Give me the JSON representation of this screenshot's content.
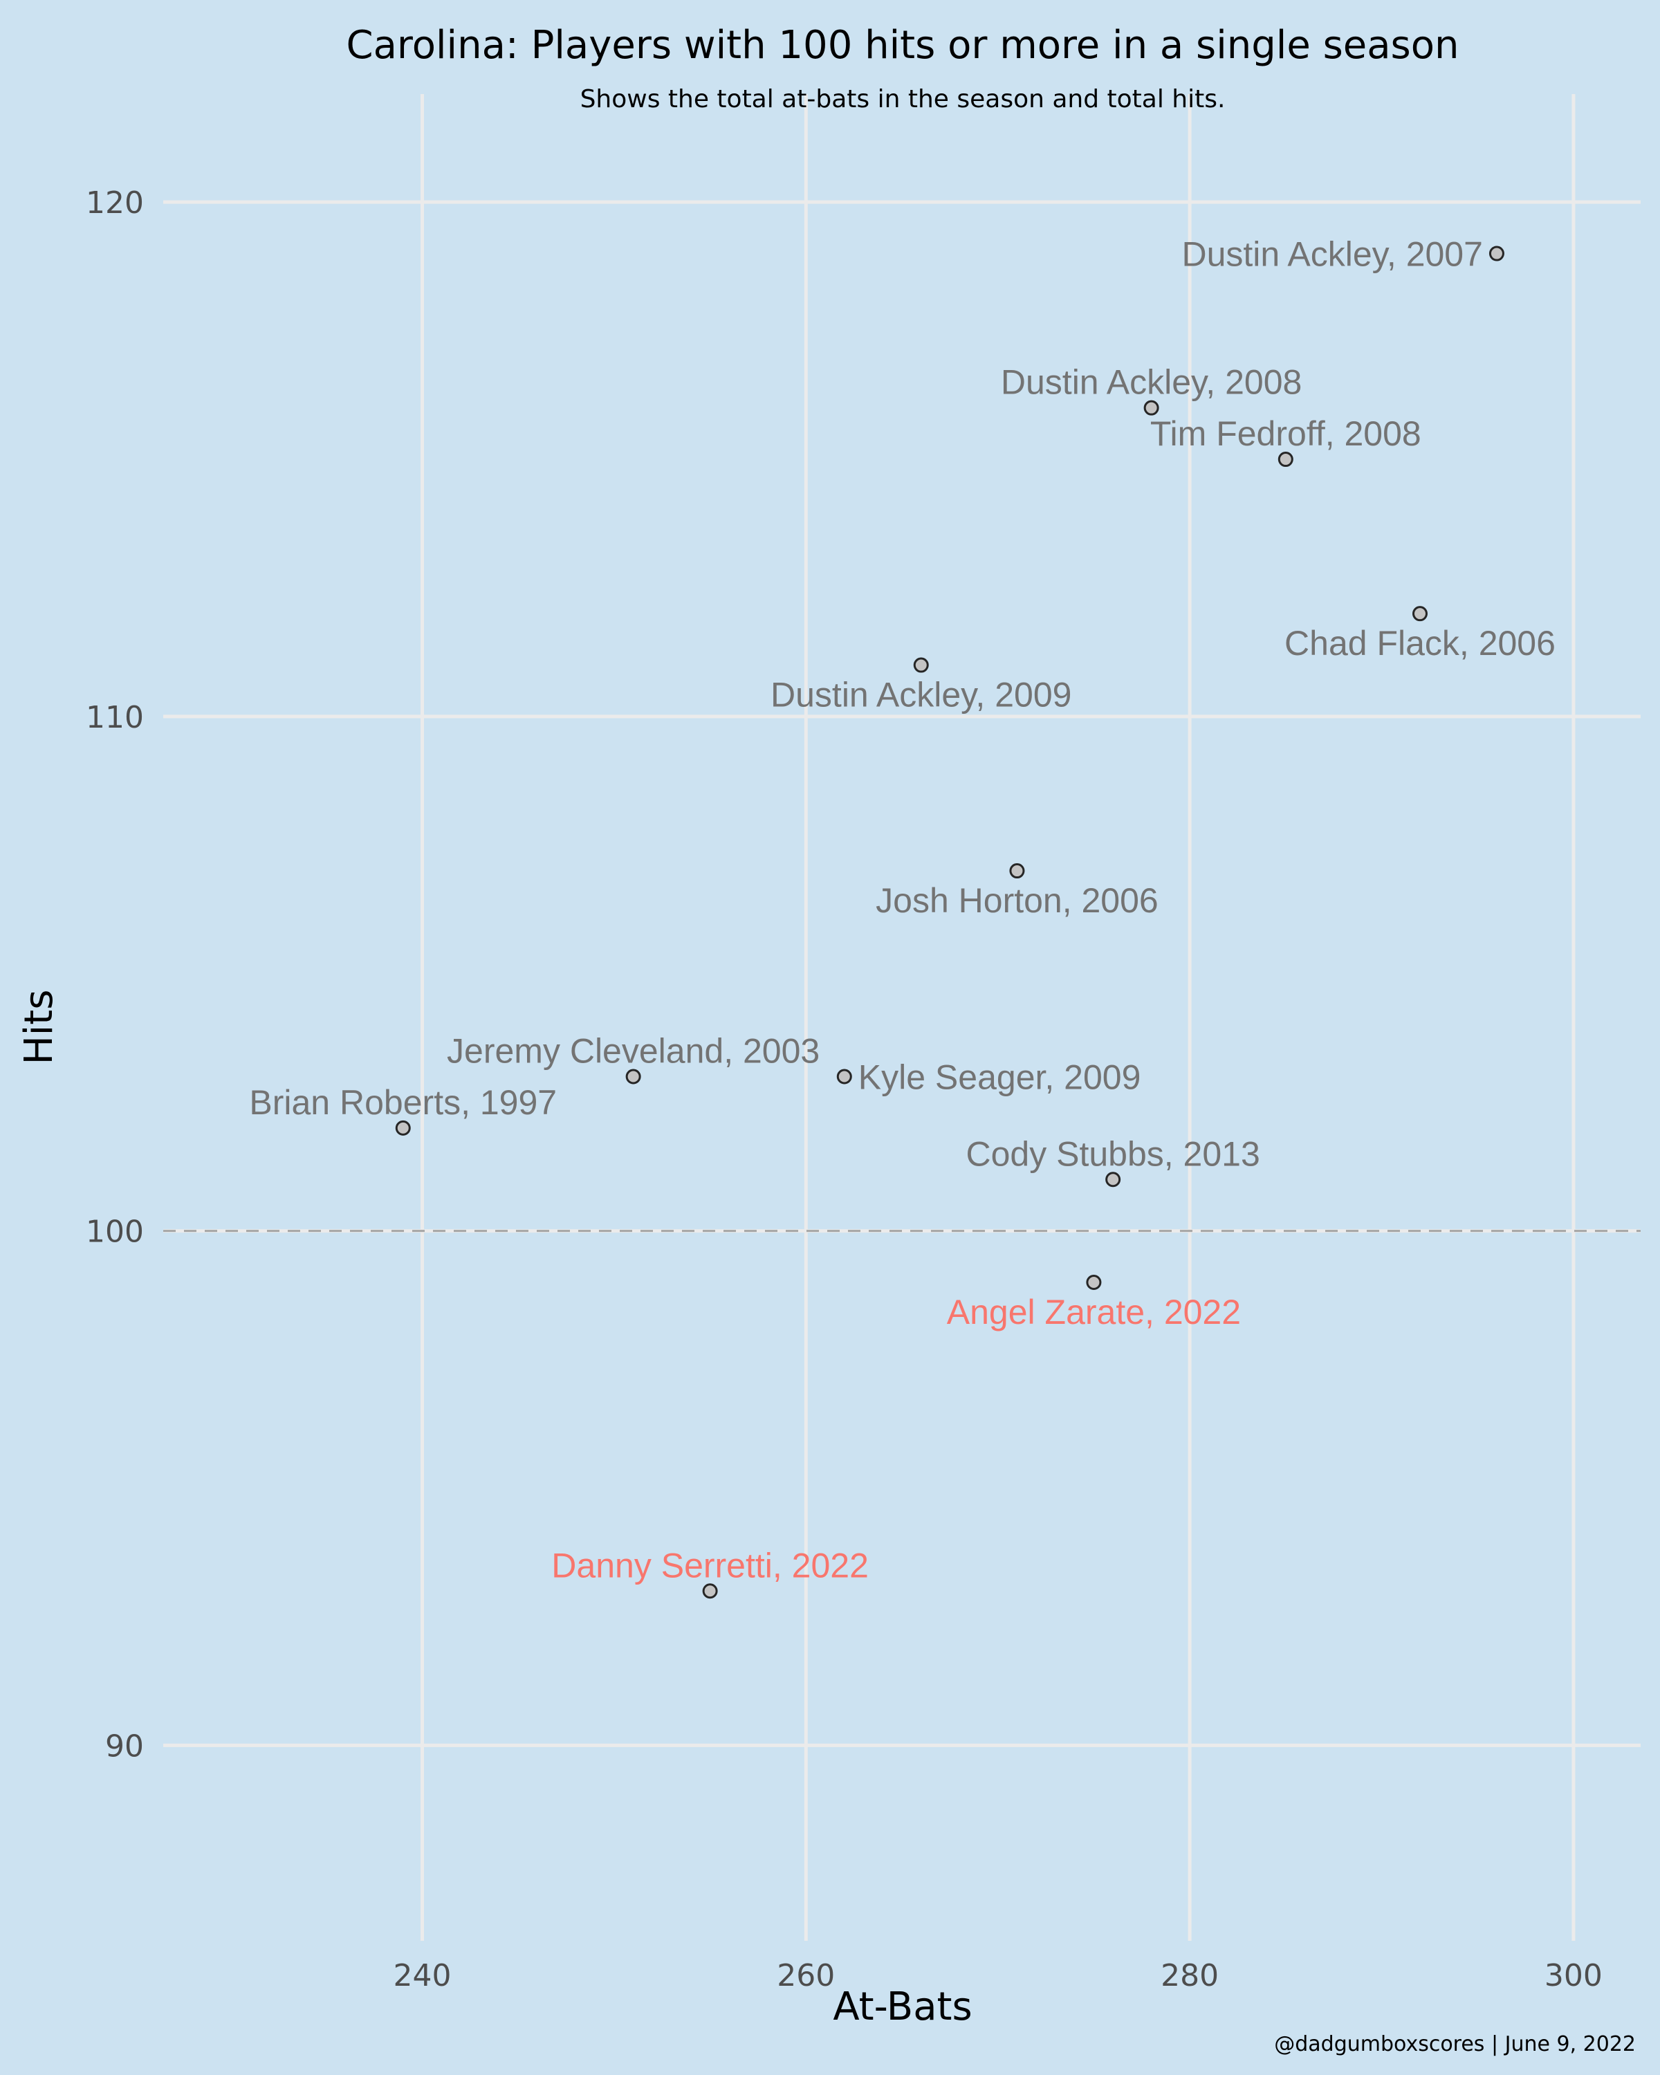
{
  "chart_data": {
    "type": "scatter",
    "title": "Carolina: Players with 100 hits or more in a single season",
    "subtitle": "Shows the total at-bats in the season and total hits.",
    "xlabel": "At-Bats",
    "ylabel": "Hits",
    "xlim": [
      226.5,
      303.5
    ],
    "ylim": [
      86.2,
      122.1
    ],
    "x_ticks": [
      240,
      260,
      280,
      300
    ],
    "y_ticks": [
      90,
      100,
      110,
      120
    ],
    "reference_line": {
      "y": 100,
      "style": "dashed"
    },
    "grid": true,
    "caption": "@dadgumboxscores | June 9, 2022",
    "colors": {
      "background": "#cce2f1",
      "default_label": "#737373",
      "highlight_label": "#f8766d",
      "point_fill": "#c4c4c4",
      "point_stroke": "#262626",
      "grid": "#ebebeb"
    },
    "points": [
      {
        "label": "Dustin Ackley, 2007",
        "x": 296,
        "y": 119,
        "highlight": false,
        "label_pos": "left"
      },
      {
        "label": "Dustin Ackley, 2008",
        "x": 278,
        "y": 116,
        "highlight": false,
        "label_pos": "above"
      },
      {
        "label": "Tim Fedroff, 2008",
        "x": 285,
        "y": 115,
        "highlight": false,
        "label_pos": "above"
      },
      {
        "label": "Chad Flack, 2006",
        "x": 292,
        "y": 112,
        "highlight": false,
        "label_pos": "below"
      },
      {
        "label": "Dustin Ackley, 2009",
        "x": 266,
        "y": 111,
        "highlight": false,
        "label_pos": "below"
      },
      {
        "label": "Josh Horton, 2006",
        "x": 271,
        "y": 107,
        "highlight": false,
        "label_pos": "below"
      },
      {
        "label": "Jeremy Cleveland, 2003",
        "x": 251,
        "y": 103,
        "highlight": false,
        "label_pos": "above"
      },
      {
        "label": "Kyle Seager, 2009",
        "x": 262,
        "y": 103,
        "highlight": false,
        "label_pos": "right"
      },
      {
        "label": "Brian Roberts, 1997",
        "x": 239,
        "y": 102,
        "highlight": false,
        "label_pos": "above"
      },
      {
        "label": "Cody Stubbs, 2013",
        "x": 276,
        "y": 101,
        "highlight": false,
        "label_pos": "above"
      },
      {
        "label": "Angel Zarate, 2022",
        "x": 275,
        "y": 99,
        "highlight": true,
        "label_pos": "below"
      },
      {
        "label": "Danny Serretti, 2022",
        "x": 255,
        "y": 93,
        "highlight": true,
        "label_pos": "above"
      }
    ]
  }
}
